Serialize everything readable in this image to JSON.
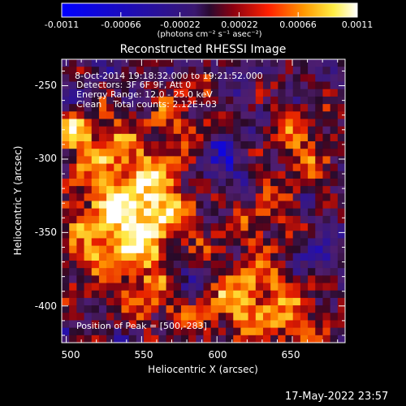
{
  "colorbar": {
    "ticks": [
      "-0.0011",
      "-0.00066",
      "-0.00022",
      "0.00022",
      "0.00066",
      "0.0011"
    ],
    "unit_label": "(photons cm⁻² s⁻¹ asec⁻²)"
  },
  "plot": {
    "title": "Reconstructed RHESSI Image",
    "xlabel": "Heliocentric X (arcsec)",
    "ylabel": "Heliocentric Y (arcsec)",
    "xticks": [
      "500",
      "550",
      "600",
      "650"
    ],
    "yticks": [
      "-250",
      "-300",
      "-350",
      "-400"
    ],
    "annotations": [
      "8-Oct-2014 19:18:32.000 to 19:21:52.000",
      "Detectors: 3F 6F 9F, Att 0",
      "Energy Range: 12.0 - 25.0 keV",
      "Clean    Total counts: 2.12E+03"
    ],
    "peak_label": "Position of Peak = [500,-283]"
  },
  "footer": {
    "timestamp": "17-May-2022 23:57"
  },
  "chart_data": {
    "type": "heatmap",
    "title": "Reconstructed RHESSI Image",
    "xlabel": "Heliocentric X (arcsec)",
    "ylabel": "Heliocentric Y (arcsec)",
    "xlim": [
      497,
      685
    ],
    "ylim": [
      -425,
      -232
    ],
    "colorbar_range": [
      -0.0011,
      0.0011
    ],
    "colorbar_unit": "(photons cm⁻² s⁻¹ asec⁻²)",
    "peak_position": [
      500,
      -283
    ],
    "colormap": [
      "#0000ff",
      "#4b0082",
      "#8b008b",
      "#b22222",
      "#ff4500",
      "#ffa500",
      "#ffff66",
      "#ffffff"
    ]
  }
}
